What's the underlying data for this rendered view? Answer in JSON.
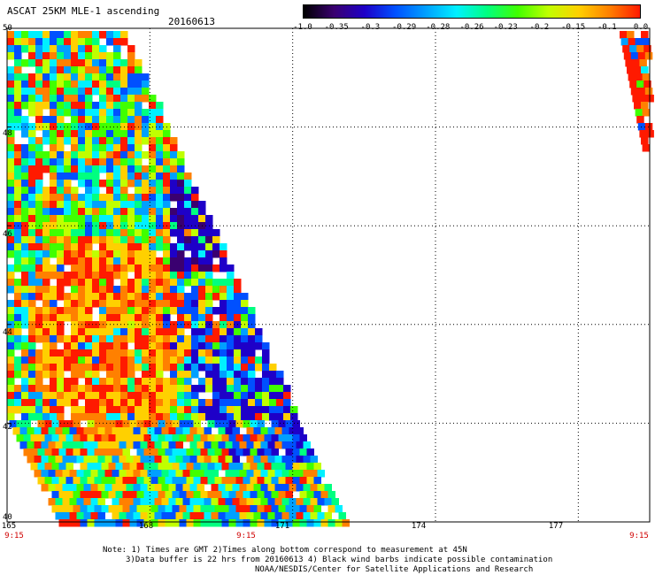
{
  "header": {
    "title": "ASCAT 25KM MLE-1 ascending",
    "date": "20160613"
  },
  "colorbar": {
    "labels": [
      "-1.0",
      "-0.35",
      "-0.3",
      "-0.29",
      "-0.28",
      "-0.26",
      "-0.23",
      "-0.2",
      "-0.15",
      "-0.1",
      "0.0"
    ],
    "colors": [
      "#000000",
      "#3a0070",
      "#1e00c8",
      "#0050ff",
      "#00a0ff",
      "#00f0ff",
      "#00ff80",
      "#40ff00",
      "#c0ff00",
      "#ffd000",
      "#ff8000",
      "#ff1a00"
    ]
  },
  "axes": {
    "lat_labels": [
      "50",
      "48",
      "46",
      "44",
      "42",
      "40"
    ],
    "lon_labels": [
      "165",
      "168",
      "171",
      "174",
      "177"
    ],
    "time_labels": [
      "9:15",
      "9:15",
      "9:15"
    ],
    "lon_range": [
      165,
      178.5
    ],
    "lat_range": [
      40,
      50
    ]
  },
  "notes": {
    "line1": "Note: 1) Times are GMT 2)Times along bottom correspond to measurement at 45N",
    "line2": "3)Data buffer is 22 hrs from 20160613 4) Black wind barbs indicate possible contamination",
    "line3": "NOAA/NESDIS/Center for Satellite Applications and Research"
  }
}
